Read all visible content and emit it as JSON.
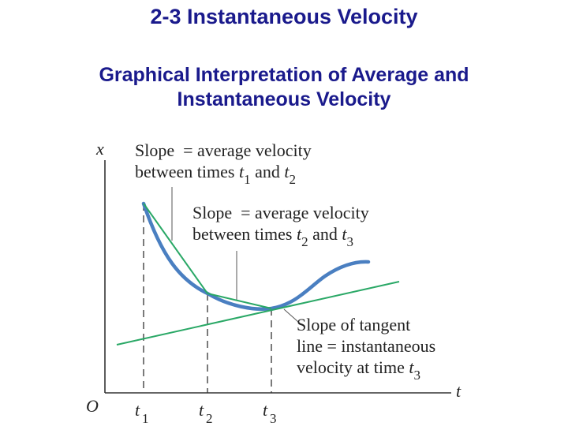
{
  "page": {
    "title": "2-3 Instantaneous Velocity",
    "subtitle_line1": "Graphical Interpretation of Average and",
    "subtitle_line2": "Instantaneous Velocity"
  },
  "figure": {
    "axis_x_label": "t",
    "axis_y_label": "x",
    "origin_label": "O",
    "tick_labels": [
      {
        "base": "t",
        "sub": "1"
      },
      {
        "base": "t",
        "sub": "2"
      },
      {
        "base": "t",
        "sub": "3"
      }
    ],
    "annotation_1": {
      "line1": "Slope  = average velocity",
      "line2_prefix": "between times ",
      "t_a": "1",
      "mid": " and ",
      "t_b": "2"
    },
    "annotation_2": {
      "line1": "Slope  = average velocity",
      "line2_prefix": "between times ",
      "t_a": "2",
      "mid": " and ",
      "t_b": "3"
    },
    "annotation_3": {
      "line1": "Slope of tangent",
      "line2": "line = instantaneous",
      "line3_prefix": "velocity at time ",
      "t": "3"
    },
    "colors": {
      "title": "#1a1a8c",
      "curve": "#4a7fc1",
      "secant_tangent": "#2aa866",
      "axes": "#333333",
      "text": "#222222"
    }
  }
}
